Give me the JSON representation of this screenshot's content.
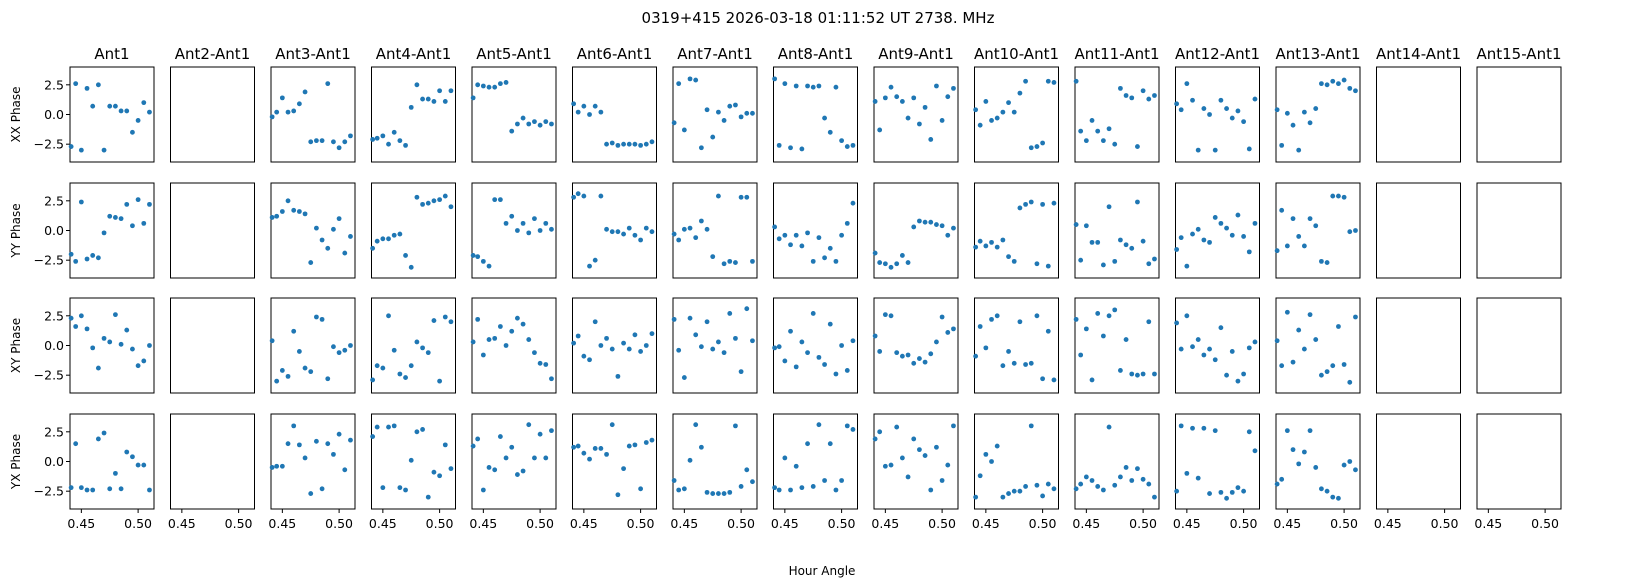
{
  "title": "0319+415  2026-03-18 01:11:52 UT  2738. MHz",
  "colors": {
    "marker": "#1f77b4",
    "axes": "#000000"
  },
  "chart_data": {
    "type": "scatter",
    "grid": false,
    "title": "0319+415  2026-03-18 01:11:52 UT  2738. MHz",
    "xlabel": "Hour Angle",
    "columns": [
      "Ant1",
      "Ant2-Ant1",
      "Ant3-Ant1",
      "Ant4-Ant1",
      "Ant5-Ant1",
      "Ant6-Ant1",
      "Ant7-Ant1",
      "Ant8-Ant1",
      "Ant9-Ant1",
      "Ant10-Ant1",
      "Ant11-Ant1",
      "Ant12-Ant1",
      "Ant13-Ant1",
      "Ant14-Ant1",
      "Ant15-Ant1"
    ],
    "rows": [
      "XX Phase",
      "YY Phase",
      "XY Phase",
      "YX Phase"
    ],
    "xlim": [
      0.44,
      0.514
    ],
    "ylim": [
      -4.0,
      4.0
    ],
    "xticks": [
      0.45,
      0.5
    ],
    "xtick_labels": [
      "0.45",
      "0.50"
    ],
    "yticks": [
      2.5,
      0.0,
      -2.5
    ],
    "ytick_labels": [
      "2.5",
      "0.0",
      "−2.5"
    ],
    "x": [
      0.441,
      0.445,
      0.45,
      0.455,
      0.46,
      0.465,
      0.47,
      0.475,
      0.48,
      0.485,
      0.49,
      0.495,
      0.5,
      0.505,
      0.51
    ],
    "y": [
      [
        [
          -2.7,
          2.6,
          -3.0,
          2.2,
          0.7,
          2.5,
          -3.0,
          0.7,
          0.7,
          0.3,
          0.3,
          -1.5,
          -0.5,
          1.0,
          0.2
        ],
        [],
        [
          -0.2,
          0.2,
          1.4,
          0.2,
          0.3,
          0.9,
          1.9,
          -2.3,
          -2.2,
          -2.2,
          2.6,
          -2.3,
          -2.8,
          -2.3,
          -1.8
        ],
        [
          -2.1,
          -2.0,
          -1.8,
          -2.5,
          -1.5,
          -2.2,
          -2.6,
          0.6,
          2.5,
          1.3,
          1.3,
          1.1,
          2.0,
          1.1,
          2.0
        ],
        [
          1.4,
          2.5,
          2.4,
          2.3,
          2.3,
          2.6,
          2.7,
          -1.4,
          -0.8,
          -0.3,
          -0.8,
          -0.6,
          -0.9,
          -0.6,
          -0.8
        ],
        [
          0.9,
          0.2,
          0.7,
          0.0,
          0.7,
          0.2,
          -2.5,
          -2.4,
          -2.6,
          -2.5,
          -2.5,
          -2.5,
          -2.6,
          -2.5,
          -2.3
        ],
        [
          -0.7,
          2.6,
          -1.3,
          3.0,
          2.9,
          -2.8,
          0.4,
          -1.9,
          0.2,
          -0.5,
          0.7,
          0.8,
          -0.2,
          0.1,
          0.1
        ],
        [
          3.0,
          -2.6,
          2.6,
          -2.8,
          2.4,
          -2.9,
          2.4,
          2.3,
          2.4,
          -0.3,
          -1.5,
          2.3,
          -2.2,
          -2.7,
          -2.6
        ],
        [
          1.1,
          -1.3,
          1.4,
          2.3,
          1.5,
          1.1,
          -0.3,
          1.4,
          -0.8,
          0.6,
          -2.1,
          2.4,
          -0.5,
          1.5,
          2.2
        ],
        [
          0.4,
          -0.9,
          1.1,
          -0.5,
          -0.3,
          0.2,
          1.0,
          0.2,
          1.8,
          2.8,
          -2.8,
          -2.7,
          -2.4,
          2.8,
          2.7
        ],
        [
          2.8,
          -1.4,
          -2.2,
          -0.5,
          -1.4,
          -2.2,
          -1.2,
          -2.5,
          2.2,
          1.6,
          1.4,
          -2.7,
          2.0,
          1.3,
          1.6
        ],
        [
          0.9,
          0.4,
          2.6,
          1.2,
          -3.0,
          0.5,
          0.0,
          -3.0,
          1.2,
          0.5,
          -0.3,
          0.3,
          -0.6,
          -2.9,
          1.3
        ],
        [
          0.4,
          -2.6,
          0.1,
          -0.9,
          -3.0,
          0.2,
          -0.7,
          0.5,
          2.6,
          2.5,
          2.8,
          2.6,
          2.9,
          2.2,
          2.0
        ],
        [],
        []
      ],
      [
        [
          -2.0,
          -2.6,
          2.4,
          -2.4,
          -2.1,
          -2.3,
          -0.2,
          1.2,
          1.1,
          1.0,
          2.2,
          0.4,
          2.6,
          0.6,
          2.2
        ],
        [],
        [
          1.1,
          1.2,
          1.6,
          2.5,
          1.7,
          1.6,
          1.4,
          -2.7,
          0.2,
          -0.8,
          -1.5,
          0.1,
          1.0,
          -1.9,
          -0.5
        ],
        [
          -1.5,
          -0.9,
          -0.7,
          -0.7,
          -0.4,
          -0.3,
          -2.1,
          -3.1,
          2.8,
          2.2,
          2.3,
          2.5,
          2.6,
          2.9,
          2.0
        ],
        [
          -2.1,
          -2.2,
          -2.6,
          -3.0,
          2.6,
          2.6,
          0.6,
          1.2,
          0.0,
          0.6,
          -0.2,
          1.0,
          0.0,
          0.6,
          0.1
        ],
        [
          2.8,
          3.1,
          2.9,
          -3.0,
          -2.5,
          2.9,
          0.1,
          -0.1,
          -0.1,
          -0.3,
          0.2,
          -0.4,
          -0.8,
          0.2,
          -0.1
        ],
        [
          -0.3,
          -0.8,
          0.1,
          0.2,
          -0.6,
          0.8,
          0.1,
          -2.2,
          2.9,
          -2.8,
          -2.6,
          -2.7,
          2.8,
          2.8,
          -2.6
        ],
        [
          0.3,
          -0.7,
          -0.4,
          -1.2,
          -0.4,
          -1.3,
          -0.2,
          -2.6,
          -0.6,
          -2.3,
          -1.5,
          -2.6,
          -0.4,
          0.6,
          2.3
        ],
        [
          -1.9,
          -2.7,
          -2.8,
          -3.1,
          -2.8,
          -2.1,
          -2.7,
          0.3,
          0.8,
          0.7,
          0.7,
          0.5,
          0.4,
          -0.4,
          0.2
        ],
        [
          -1.4,
          -0.9,
          -1.3,
          -1.0,
          -1.4,
          -0.8,
          -2.2,
          -2.6,
          1.9,
          2.2,
          2.4,
          -2.8,
          2.2,
          -3.0,
          2.3
        ],
        [
          0.5,
          -2.5,
          0.4,
          -1.0,
          -1.0,
          -2.9,
          2.0,
          -2.6,
          -0.8,
          -1.2,
          -1.5,
          2.4,
          -0.9,
          -2.8,
          -2.4
        ],
        [
          -1.6,
          -0.6,
          -3.0,
          -0.3,
          0.1,
          -0.8,
          -1.0,
          1.1,
          0.6,
          0.2,
          -0.4,
          1.3,
          -0.5,
          -1.8,
          0.6
        ],
        [
          -1.7,
          1.7,
          -1.3,
          1.0,
          -0.5,
          -1.3,
          1.0,
          0.4,
          -2.6,
          -2.7,
          2.9,
          2.9,
          2.8,
          -0.1,
          0.0
        ],
        [],
        []
      ],
      [
        [
          2.3,
          1.6,
          2.5,
          1.4,
          -0.2,
          -1.9,
          0.6,
          0.3,
          2.6,
          0.1,
          1.3,
          -0.3,
          -1.7,
          -1.3,
          0.0
        ],
        [],
        [
          0.4,
          -3.0,
          -2.1,
          -2.6,
          1.2,
          -0.5,
          -1.9,
          -2.2,
          2.4,
          2.2,
          -2.8,
          -0.1,
          -0.6,
          -0.4,
          0.0
        ],
        [
          -2.9,
          -1.7,
          -1.9,
          2.5,
          -0.4,
          -2.4,
          -2.7,
          -1.7,
          0.3,
          -0.2,
          -0.6,
          2.1,
          -3.0,
          2.4,
          2.0
        ],
        [
          0.3,
          2.2,
          -0.8,
          0.5,
          0.6,
          1.6,
          0.0,
          1.2,
          2.3,
          1.8,
          0.5,
          -0.6,
          -1.5,
          -1.6,
          -2.8
        ],
        [
          0.2,
          0.8,
          -0.9,
          -1.2,
          2.0,
          0.0,
          0.6,
          -0.3,
          -2.6,
          0.2,
          -0.3,
          0.9,
          -0.5,
          0.0,
          1.0
        ],
        [
          2.2,
          -0.4,
          -2.7,
          2.3,
          0.9,
          -0.1,
          2.0,
          -0.3,
          0.3,
          -0.6,
          2.7,
          0.6,
          -2.2,
          3.1,
          0.4
        ],
        [
          -0.2,
          -0.1,
          -1.3,
          1.2,
          -1.8,
          0.3,
          -0.6,
          2.7,
          -1.0,
          -1.6,
          1.8,
          -2.4,
          0.0,
          -2.1,
          0.4
        ],
        [
          0.8,
          -0.5,
          2.6,
          2.5,
          -0.6,
          -0.9,
          -0.8,
          -1.5,
          -1.1,
          -1.4,
          -0.7,
          0.3,
          2.4,
          1.1,
          1.4
        ],
        [
          -0.9,
          1.6,
          -0.2,
          2.2,
          2.5,
          -1.7,
          -0.5,
          -1.5,
          2.0,
          -1.6,
          -1.5,
          2.5,
          -2.8,
          1.2,
          -2.9
        ],
        [
          2.2,
          -0.8,
          1.4,
          -2.9,
          2.7,
          0.8,
          2.5,
          3.0,
          -2.1,
          0.5,
          -2.4,
          -2.5,
          -2.4,
          2.0,
          -2.4
        ],
        [
          1.9,
          -0.3,
          2.5,
          -0.1,
          0.5,
          -0.8,
          -0.3,
          -1.2,
          1.5,
          -2.5,
          -0.5,
          -3.0,
          -2.4,
          -0.2,
          0.3
        ],
        [
          0.4,
          -1.7,
          2.8,
          -1.4,
          1.3,
          -0.3,
          2.6,
          0.5,
          -2.5,
          -2.2,
          -1.7,
          1.6,
          -1.6,
          -3.1,
          2.4
        ],
        [],
        []
      ],
      [
        [
          -2.2,
          1.5,
          -2.2,
          -2.4,
          -2.4,
          1.9,
          2.4,
          -2.3,
          -1.0,
          -2.3,
          0.8,
          0.4,
          -0.3,
          -0.3,
          -2.4
        ],
        [],
        [
          -0.5,
          -0.4,
          -0.4,
          1.5,
          3.0,
          1.4,
          0.3,
          -2.7,
          1.7,
          -2.3,
          1.5,
          0.6,
          2.3,
          -0.7,
          1.8
        ],
        [
          2.1,
          2.9,
          -2.2,
          2.9,
          3.0,
          -2.2,
          -2.4,
          0.1,
          2.5,
          2.7,
          -3.0,
          -0.9,
          -1.2,
          1.4,
          -0.6
        ],
        [
          1.3,
          1.9,
          -2.4,
          -0.5,
          -0.7,
          2.1,
          0.3,
          1.2,
          -1.1,
          -0.8,
          3.1,
          0.3,
          2.3,
          0.3,
          2.6
        ],
        [
          1.2,
          1.3,
          0.7,
          0.2,
          1.1,
          1.1,
          0.6,
          3.1,
          -2.8,
          -0.6,
          1.3,
          1.4,
          -2.3,
          1.6,
          1.8
        ],
        [
          -1.6,
          -2.4,
          -2.3,
          0.1,
          3.1,
          1.2,
          -2.6,
          -2.7,
          -2.7,
          -2.7,
          -2.6,
          3.0,
          -2.1,
          -0.7,
          -1.7
        ],
        [
          -2.2,
          -2.4,
          0.3,
          -2.4,
          -0.4,
          -2.2,
          1.5,
          -2.1,
          3.1,
          -1.6,
          1.5,
          -2.4,
          -1.6,
          3.0,
          2.7
        ],
        [
          1.9,
          2.5,
          -0.4,
          -0.3,
          2.9,
          0.3,
          -1.3,
          1.9,
          1.0,
          0.5,
          -2.4,
          1.2,
          -1.6,
          -0.3,
          3.0
        ],
        [
          -3.0,
          -1.2,
          0.6,
          0.0,
          1.3,
          -3.0,
          -2.7,
          -2.5,
          -2.5,
          -2.1,
          3.0,
          -2.0,
          -2.9,
          -1.9,
          -2.3
        ],
        [
          -2.3,
          -1.9,
          -1.3,
          -1.6,
          -2.1,
          -2.4,
          2.9,
          -2.0,
          -1.3,
          -0.5,
          -1.6,
          -0.6,
          -1.5,
          -1.9,
          -3.0
        ],
        [
          -2.5,
          3.0,
          -1.0,
          2.8,
          -1.4,
          2.8,
          -2.7,
          2.6,
          -2.6,
          -3.1,
          -2.6,
          -2.2,
          -2.5,
          2.5,
          0.9
        ],
        [
          -1.9,
          -1.5,
          2.6,
          1.0,
          -0.2,
          0.8,
          2.6,
          -0.5,
          -2.3,
          -2.5,
          -3.0,
          -3.1,
          -0.3,
          0.0,
          -0.7
        ],
        [],
        []
      ]
    ]
  }
}
